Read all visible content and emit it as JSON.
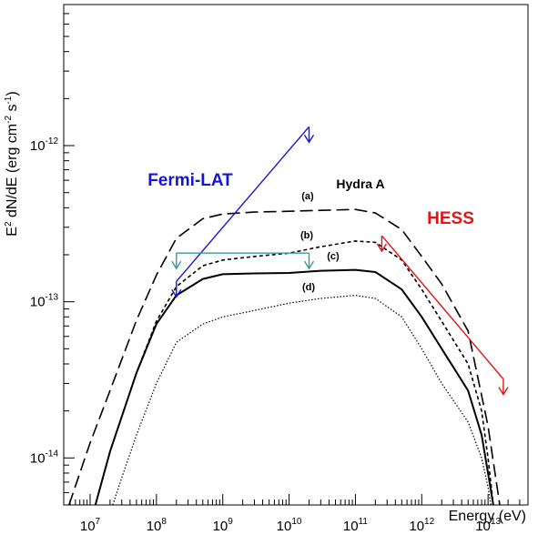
{
  "chart_data": {
    "type": "line",
    "title": "",
    "xlabel": "Energy (eV)",
    "ylabel": "E² dN/dE (erg cm⁻² s⁻¹)",
    "ylabel_parts": {
      "main": "E",
      "sup1": "2",
      "mid": " dN/dE (erg cm",
      "sup2": "-2",
      "mid2": " s",
      "sup3": "-1",
      "end": ")"
    },
    "xscale": "log",
    "yscale": "log",
    "xlim": [
      4000000.0,
      40000000000000.0
    ],
    "ylim": [
      5e-15,
      8e-12
    ],
    "grid": false,
    "x_ticks": [
      {
        "base": "10",
        "exp": "7"
      },
      {
        "base": "10",
        "exp": "8"
      },
      {
        "base": "10",
        "exp": "9"
      },
      {
        "base": "10",
        "exp": "10"
      },
      {
        "base": "10",
        "exp": "11"
      },
      {
        "base": "10",
        "exp": "12"
      },
      {
        "base": "10",
        "exp": "13"
      }
    ],
    "y_ticks": [
      {
        "base": "10",
        "exp": "-14"
      },
      {
        "base": "10",
        "exp": "-13"
      },
      {
        "base": "10",
        "exp": "-12"
      }
    ],
    "source_label": "Hydra A",
    "series": [
      {
        "label": "(a)",
        "style": "longdash",
        "color": "#000000",
        "x": [
          4800000.0,
          10000000.0,
          20000000.0,
          50000000.0,
          100000000.0,
          200000000.0,
          500000000.0,
          1000000000.0,
          3000000000.0,
          10000000000.0,
          30000000000.0,
          100000000000.0,
          200000000000.0,
          500000000000.0,
          1000000000000.0,
          2000000000000.0,
          5000000000000.0,
          10000000000000.0,
          15000000000000.0
        ],
        "y": [
          5e-15,
          1.25e-14,
          2.7e-14,
          7.6e-14,
          1.48e-13,
          2.55e-13,
          3.4e-13,
          3.65e-13,
          3.75e-13,
          3.8e-13,
          3.85e-13,
          3.9e-13,
          3.7e-13,
          2.9e-13,
          1.95e-13,
          1.3e-13,
          6.5e-14,
          1.6e-14,
          5e-15
        ]
      },
      {
        "label": "(b)",
        "style": "dashed-short",
        "color": "#000000",
        "x": [
          12000000.0,
          20000000.0,
          50000000.0,
          100000000.0,
          200000000.0,
          500000000.0,
          1000000000.0,
          3000000000.0,
          10000000000.0,
          30000000000.0,
          100000000000.0,
          200000000000.0,
          500000000000.0,
          1000000000000.0,
          2000000000000.0,
          5000000000000.0,
          8000000000000.0,
          10000000000000.0,
          12000000000000.0
        ],
        "y": [
          5e-15,
          1.1e-14,
          3.5e-14,
          7.5e-14,
          1.25e-13,
          1.7e-13,
          1.85e-13,
          1.95e-13,
          2.05e-13,
          2.25e-13,
          2.45e-13,
          2.4e-13,
          1.85e-13,
          1.2e-13,
          7.5e-14,
          4e-14,
          2e-14,
          1e-14,
          5e-15
        ]
      },
      {
        "label": "(c)",
        "style": "solid",
        "color": "#000000",
        "x": [
          12000000.0,
          20000000.0,
          50000000.0,
          100000000.0,
          200000000.0,
          500000000.0,
          1000000000.0,
          3000000000.0,
          10000000000.0,
          30000000000.0,
          100000000000.0,
          200000000000.0,
          500000000000.0,
          1000000000000.0,
          2000000000000.0,
          5000000000000.0,
          8000000000000.0,
          10000000000000.0,
          12000000000000.0
        ],
        "y": [
          5e-15,
          1.1e-14,
          3.5e-14,
          7.2e-14,
          1.1e-13,
          1.4e-13,
          1.5e-13,
          1.52e-13,
          1.53e-13,
          1.58e-13,
          1.6e-13,
          1.55e-13,
          1.2e-13,
          8e-14,
          5e-14,
          2.7e-14,
          1.4e-14,
          8e-15,
          5e-15
        ]
      },
      {
        "label": "(d)",
        "style": "dotted",
        "color": "#000000",
        "x": [
          22000000.0,
          30000000.0,
          50000000.0,
          100000000.0,
          200000000.0,
          500000000.0,
          1000000000.0,
          3000000000.0,
          10000000000.0,
          30000000000.0,
          100000000000.0,
          200000000000.0,
          500000000000.0,
          1000000000000.0,
          2000000000000.0,
          5000000000000.0,
          8000000000000.0,
          10000000000000.0,
          11000000000000.0
        ],
        "y": [
          5e-15,
          7.5e-15,
          1.4e-14,
          3e-14,
          5.5e-14,
          7.2e-14,
          8e-14,
          8.8e-14,
          9.8e-14,
          1.05e-13,
          1.1e-13,
          1.05e-13,
          8e-14,
          5e-14,
          3e-14,
          1.7e-14,
          1e-14,
          6.5e-15,
          5e-15
        ]
      }
    ],
    "upper_limits": [
      {
        "label": "Fermi-LAT",
        "color": "#1515d6",
        "x": [
          200000000.0,
          20000000000.0
        ],
        "y": [
          1.35e-13,
          1.32e-12
        ]
      },
      {
        "label": "",
        "color": "#3a9a9a",
        "x": [
          200000000.0,
          20000000000.0
        ],
        "y": [
          2.05e-13,
          2.05e-13
        ]
      },
      {
        "label": "HESS",
        "color": "#e01515",
        "x": [
          250000000000.0,
          17000000000000.0
        ],
        "y": [
          2.65e-13,
          3.2e-14
        ]
      }
    ]
  }
}
